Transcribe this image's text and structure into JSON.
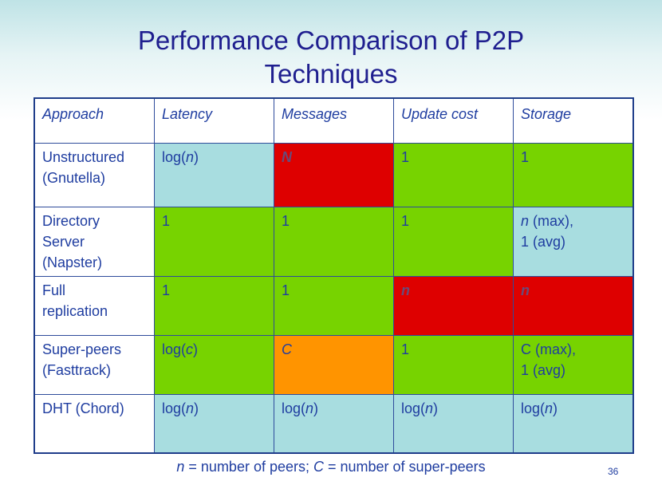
{
  "title_line1": "Performance Comparison of P2P",
  "title_line2": "Techniques",
  "headers": [
    "Approach",
    "Latency",
    "Messages",
    "Update cost",
    "Storage"
  ],
  "rows": [
    {
      "approach": [
        "Unstructured",
        "(Gnutella)"
      ],
      "latency": {
        "pre": "log(",
        "var": "n",
        "post": ")",
        "color": "#a8dde0"
      },
      "messages": {
        "text": "N",
        "color": "#de0000"
      },
      "update": {
        "text": "1",
        "color": "#77d300"
      },
      "storage": {
        "text": "1",
        "color": "#77d300"
      }
    },
    {
      "approach": [
        "Directory",
        "Server",
        "(Napster)"
      ],
      "latency": {
        "text": "1",
        "color": "#77d300"
      },
      "messages": {
        "text": "1",
        "color": "#77d300"
      },
      "update": {
        "text": "1",
        "color": "#77d300"
      },
      "storage": {
        "var": "n",
        "line1": " (max),",
        "line2": "1 (avg)",
        "color": "#a8dde0"
      }
    },
    {
      "approach": [
        "Full",
        "replication"
      ],
      "latency": {
        "text": "1",
        "color": "#77d300"
      },
      "messages": {
        "text": "1",
        "color": "#77d300"
      },
      "update": {
        "text": "n",
        "color": "#de0000"
      },
      "storage": {
        "text": "n",
        "color": "#de0000"
      }
    },
    {
      "approach": [
        "Super-peers",
        "(Fasttrack)"
      ],
      "latency": {
        "pre": "log(",
        "var": "c",
        "post": ")",
        "color": "#77d300"
      },
      "messages": {
        "text": "C",
        "color": "#ff9400"
      },
      "update": {
        "text": "1",
        "color": "#77d300"
      },
      "storage": {
        "line1": "C (max),",
        "line2": "1 (avg)",
        "color": "#77d300"
      }
    },
    {
      "approach": [
        "DHT (Chord)"
      ],
      "latency": {
        "pre": "log(",
        "var": "n",
        "post": ")",
        "color": "#a8dde0"
      },
      "messages": {
        "pre": "log(",
        "var": "n",
        "post": ")",
        "color": "#a8dde0"
      },
      "update": {
        "pre": "log(",
        "var": "n",
        "post": ")",
        "color": "#a8dde0"
      },
      "storage": {
        "pre": "log(",
        "var": "n",
        "post": ")",
        "color": "#a8dde0"
      }
    }
  ],
  "footnote": {
    "n_var": "n",
    "n_text": " = number of peers; ",
    "c_var": "C",
    "c_text": " = number of super-peers"
  },
  "page_number": "36"
}
